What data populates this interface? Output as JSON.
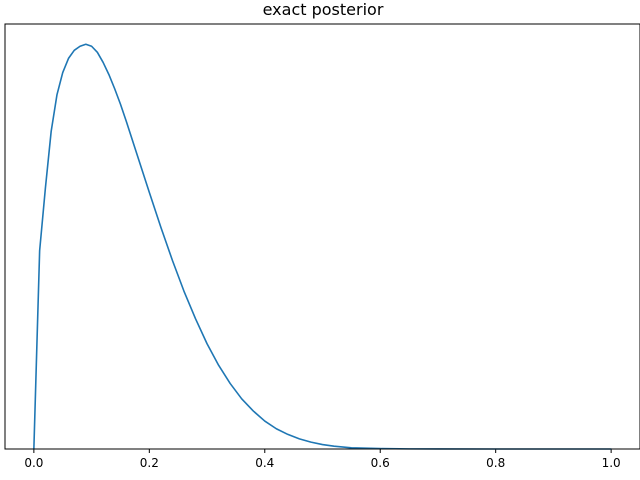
{
  "chart_data": {
    "type": "line",
    "title": "exact posterior",
    "xlabel": "",
    "ylabel": "",
    "xlim": [
      -0.05,
      1.05
    ],
    "ylim": [
      0,
      1.05
    ],
    "grid": false,
    "legend": "none",
    "y_tick_labels_shown": false,
    "x_ticks": [
      0.0,
      0.2,
      0.4,
      0.6,
      0.8,
      1.0
    ],
    "x_tick_labels": [
      "0.0",
      "0.2",
      "0.4",
      "0.6",
      "0.8",
      "1.0"
    ],
    "series": [
      {
        "color": "#1f77b4",
        "x": [
          0.0,
          0.01,
          0.02,
          0.03,
          0.04,
          0.05,
          0.06,
          0.07,
          0.08,
          0.09,
          0.1,
          0.11,
          0.12,
          0.13,
          0.14,
          0.15,
          0.16,
          0.18,
          0.2,
          0.22,
          0.24,
          0.26,
          0.28,
          0.3,
          0.32,
          0.34,
          0.36,
          0.38,
          0.4,
          0.42,
          0.44,
          0.46,
          0.48,
          0.5,
          0.52,
          0.55,
          0.6,
          0.65,
          0.7,
          0.8,
          0.9,
          1.0
        ],
        "y": [
          0.0,
          0.49,
          0.645,
          0.785,
          0.875,
          0.93,
          0.965,
          0.985,
          0.995,
          1.0,
          0.995,
          0.98,
          0.955,
          0.925,
          0.89,
          0.852,
          0.81,
          0.722,
          0.634,
          0.548,
          0.466,
          0.39,
          0.322,
          0.26,
          0.207,
          0.162,
          0.124,
          0.094,
          0.069,
          0.05,
          0.036,
          0.025,
          0.017,
          0.011,
          0.007,
          0.003,
          0.001,
          0.0003,
          0.0001,
          0.0,
          0.0,
          0.0
        ]
      }
    ]
  }
}
